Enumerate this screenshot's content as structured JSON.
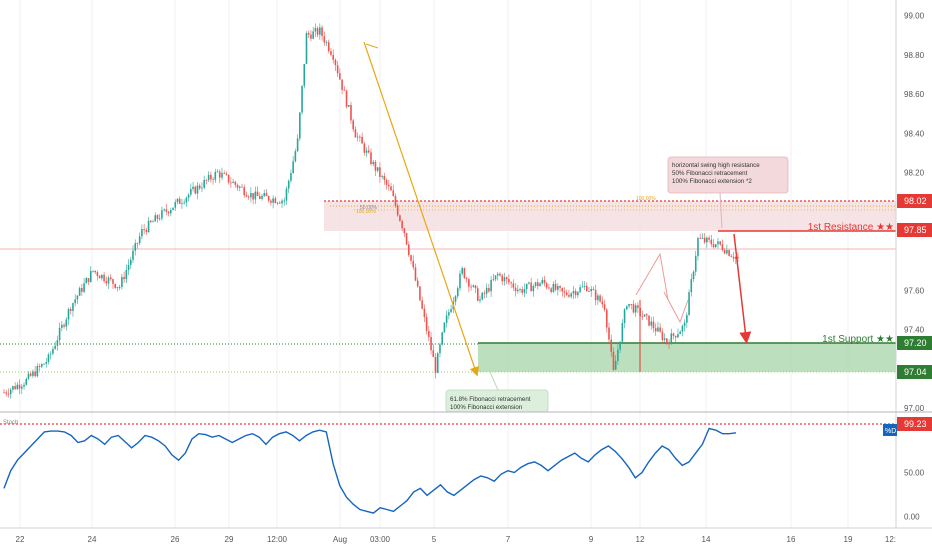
{
  "chart_data": [
    {
      "type": "candlestick",
      "title": "",
      "xlabel": "",
      "ylabel": "",
      "ylim": [
        96.98,
        99.08
      ],
      "y_ticks": [
        "99.00",
        "98.80",
        "98.60",
        "98.40",
        "98.20",
        "97.60",
        "97.40",
        "97.00"
      ],
      "x_ticks": [
        "22",
        "24",
        "26",
        "29",
        "12:00",
        "Aug",
        "03:00",
        "5",
        "7",
        "9",
        "12",
        "14",
        "16",
        "19",
        "12:"
      ],
      "price_path_approx": [
        [
          0,
          97.08
        ],
        [
          10,
          97.14
        ],
        [
          20,
          97.25
        ],
        [
          30,
          97.52
        ],
        [
          40,
          97.7
        ],
        [
          52,
          97.62
        ],
        [
          62,
          97.9
        ],
        [
          70,
          97.98
        ],
        [
          82,
          98.08
        ],
        [
          96,
          98.2
        ],
        [
          112,
          98.08
        ],
        [
          126,
          98.06
        ],
        [
          132,
          98.36
        ],
        [
          136,
          98.9
        ],
        [
          142,
          98.92
        ],
        [
          148,
          98.8
        ],
        [
          158,
          98.4
        ],
        [
          166,
          98.24
        ],
        [
          174,
          98.1
        ],
        [
          180,
          97.9
        ],
        [
          186,
          97.6
        ],
        [
          190,
          97.4
        ],
        [
          194,
          97.2
        ],
        [
          198,
          97.42
        ],
        [
          206,
          97.7
        ],
        [
          214,
          97.55
        ],
        [
          222,
          97.68
        ],
        [
          232,
          97.6
        ],
        [
          242,
          97.64
        ],
        [
          252,
          97.58
        ],
        [
          262,
          97.62
        ],
        [
          270,
          97.52
        ],
        [
          274,
          97.18
        ],
        [
          280,
          97.54
        ],
        [
          290,
          97.44
        ],
        [
          298,
          97.34
        ],
        [
          306,
          97.42
        ],
        [
          312,
          97.86
        ],
        [
          322,
          97.83
        ],
        [
          330,
          97.76
        ]
      ],
      "levels": {
        "resistance": {
          "label": "1st Resistance ★★",
          "value": "97.85"
        },
        "support": {
          "label": "1st Support ★★",
          "value": "97.20"
        },
        "zone_top": "98.02",
        "support_zone_low": "97.04"
      },
      "annotations": [
        {
          "lines": [
            "horizontal swing high resistance",
            "50% Fibonacci retracement",
            "100% Fibonacci extension *2"
          ]
        },
        {
          "lines": [
            "61.8% Fibonacci retracement",
            "100% Fibonacci extension"
          ]
        }
      ],
      "fib_labels": [
        "50.00%",
        "100.00%",
        "100.00%"
      ],
      "colors": {
        "up": "#26a69a",
        "down": "#ef5350",
        "resistance": "#e53935",
        "support": "#2e7d32",
        "fib": "#e6a817"
      }
    },
    {
      "type": "line",
      "title": "",
      "series": [
        {
          "name": "%D"
        }
      ],
      "ylim": [
        -5,
        105
      ],
      "y_ticks": [
        "50.00",
        "0.00"
      ],
      "y_ticks_values": [
        50,
        0
      ],
      "reference_value": "99.23",
      "indicator_name": "Stoch",
      "values": [
        32,
        52,
        64,
        72,
        80,
        88,
        96,
        97,
        97,
        96,
        92,
        84,
        86,
        92,
        88,
        82,
        90,
        92,
        85,
        78,
        84,
        92,
        90,
        86,
        80,
        70,
        64,
        72,
        88,
        94,
        93,
        90,
        92,
        88,
        84,
        88,
        92,
        94,
        90,
        82,
        90,
        94,
        96,
        92,
        86,
        92,
        96,
        98,
        96,
        60,
        35,
        22,
        14,
        8,
        6,
        4,
        10,
        8,
        6,
        12,
        18,
        28,
        32,
        24,
        30,
        36,
        28,
        24,
        30,
        36,
        42,
        46,
        44,
        40,
        48,
        52,
        50,
        56,
        60,
        62,
        58,
        52,
        58,
        64,
        68,
        72,
        66,
        62,
        70,
        76,
        80,
        74,
        66,
        56,
        44,
        50,
        62,
        72,
        80,
        76,
        66,
        58,
        62,
        72,
        82,
        100,
        98,
        94,
        94,
        95
      ]
    }
  ]
}
